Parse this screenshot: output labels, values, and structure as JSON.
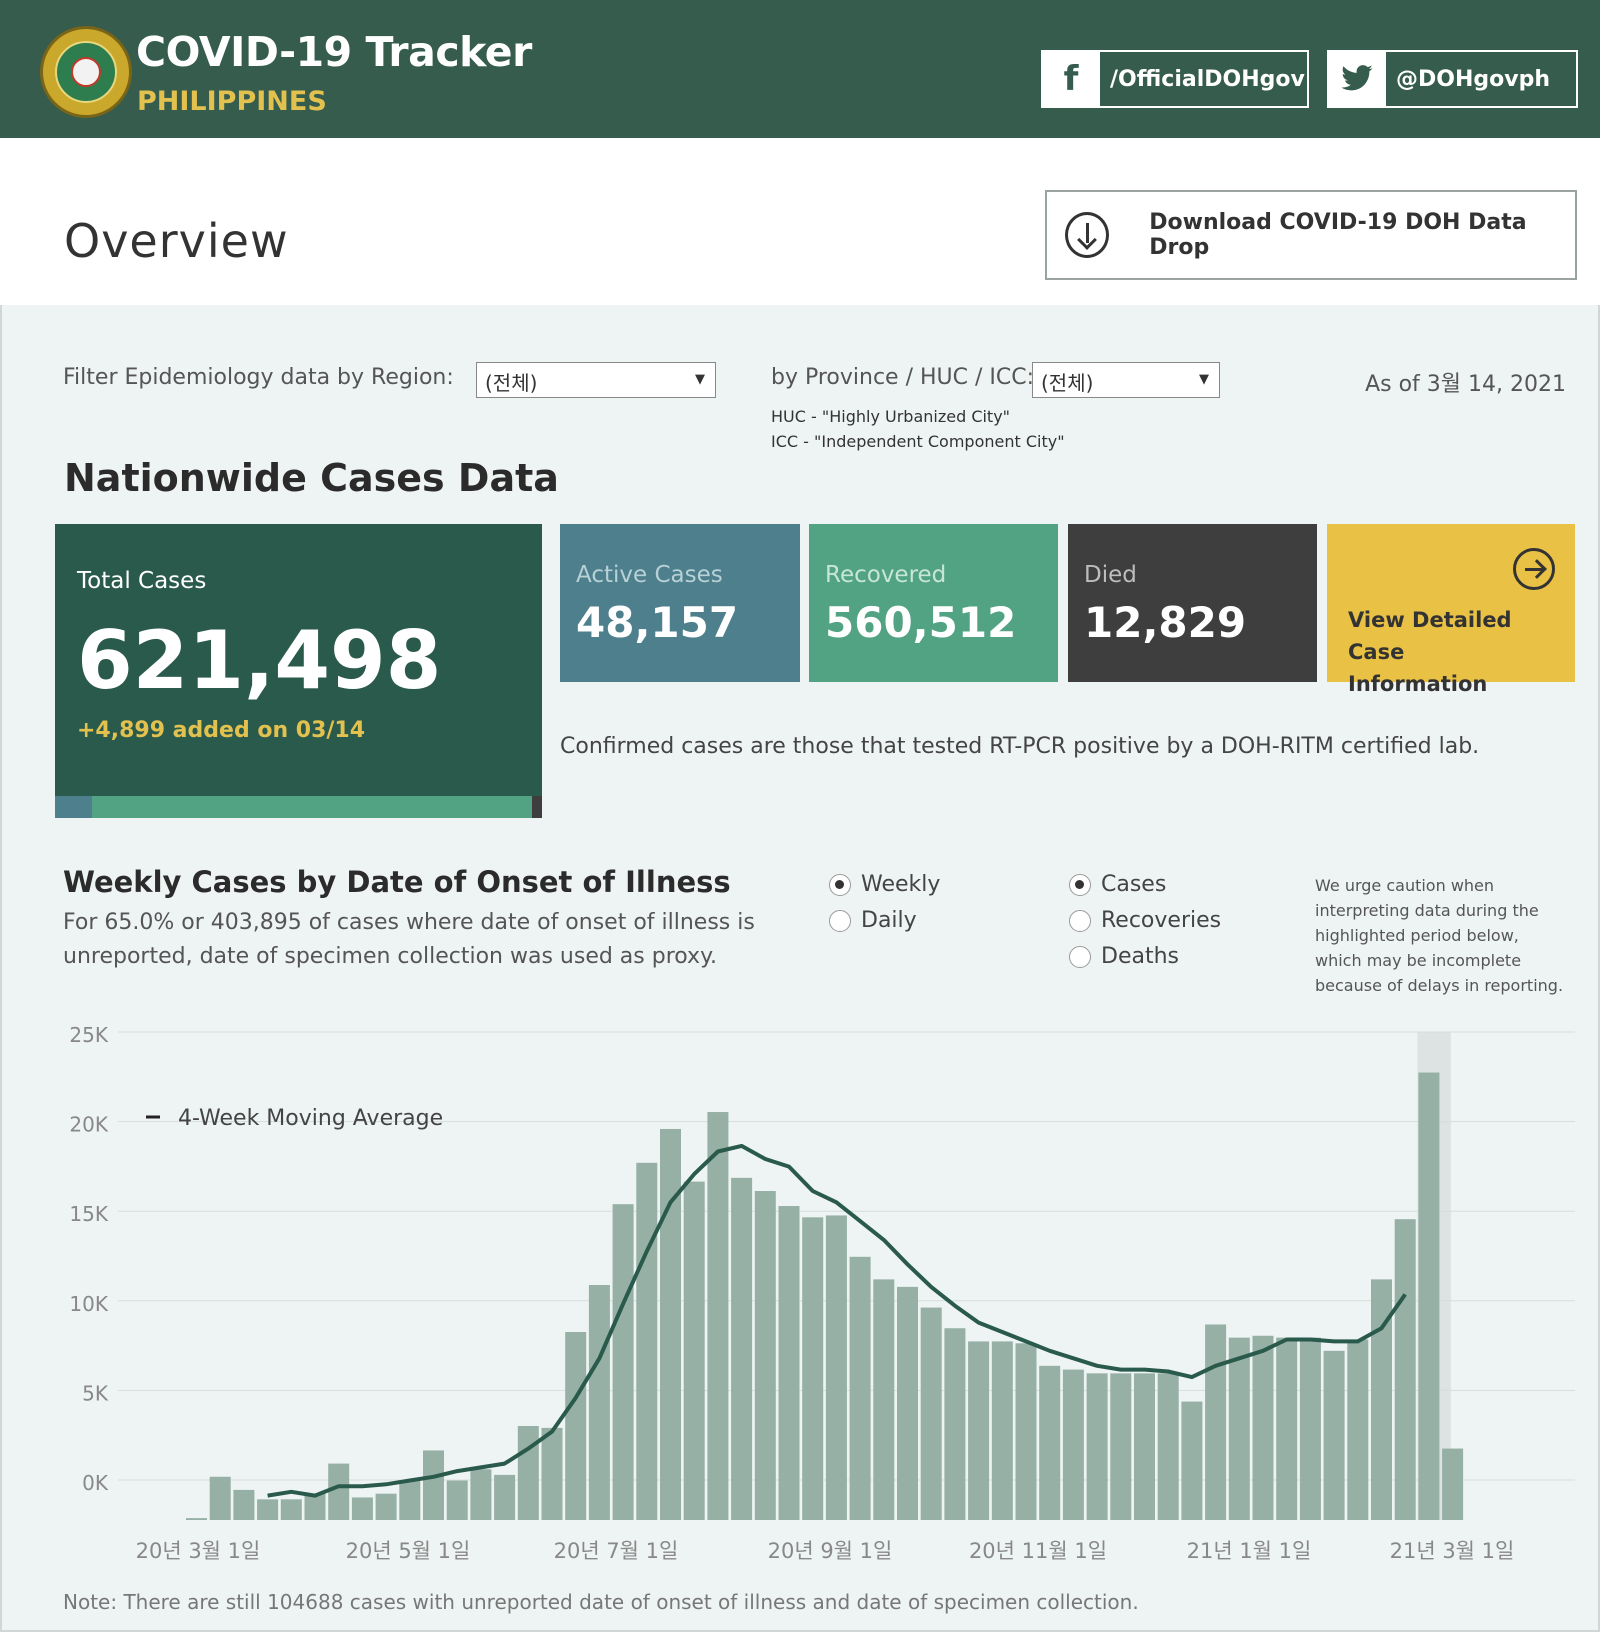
{
  "header": {
    "title": "COVID-19 Tracker",
    "subtitle": "PHILIPPINES",
    "facebook": {
      "icon": "facebook-icon",
      "glyph": "f",
      "handle": "/OfficialDOHgov"
    },
    "twitter": {
      "icon": "twitter-icon",
      "glyph": "🐦",
      "handle": "@DOHgovph"
    }
  },
  "overview": {
    "title": "Overview",
    "download_label": "Download COVID-19 DOH Data Drop"
  },
  "filters": {
    "region_label": "Filter Epidemiology data by Region:",
    "region_value": "(전체)",
    "province_label": "by Province / HUC / ICC:",
    "province_value": "(전체)",
    "huc_note": "HUC - \"Highly Urbanized City\"",
    "icc_note": "ICC - \"Independent Component City\"",
    "as_of": "As of 3월 14, 2021"
  },
  "nationwide": {
    "title": "Nationwide Cases Data",
    "total_label": "Total Cases",
    "total_value": "621,498",
    "total_added": "+4,899 added on 03/14",
    "active_label": "Active Cases",
    "active_value": "48,157",
    "recovered_label": "Recovered",
    "recovered_value": "560,512",
    "died_label": "Died",
    "died_value": "12,829",
    "detail_label": "View Detailed Case Information",
    "confirmed_note": "Confirmed cases are those that tested RT-PCR positive by a DOH-RITM certified lab."
  },
  "weekly": {
    "title": "Weekly Cases by Date of Onset of Illness",
    "description": "For 65.0% or 403,895 of cases where date of onset of illness is unreported, date of specimen collection was used as proxy.",
    "period_options": [
      {
        "label": "Weekly",
        "selected": true
      },
      {
        "label": "Daily",
        "selected": false
      }
    ],
    "metric_options": [
      {
        "label": "Cases",
        "selected": true
      },
      {
        "label": "Recoveries",
        "selected": false
      },
      {
        "label": "Deaths",
        "selected": false
      }
    ],
    "caution": "We urge caution when interpreting data during the highlighted period below, which may be incomplete because of delays in reporting."
  },
  "colors": {
    "header": "#355c4c",
    "bar": "#96b0a6",
    "line": "#2a5a4b",
    "highlight": "#dde3e2"
  },
  "chart_data": {
    "type": "bar",
    "legend": "4-Week Moving Average",
    "y_ticks": [
      "25K",
      "20K",
      "15K",
      "10K",
      "5K",
      "0K"
    ],
    "ylim": [
      0,
      25000
    ],
    "x_tick_labels": [
      "20년 3월 1일",
      "20년 5월 1일",
      "20년 7월 1일",
      "20년 9월 1일",
      "20년 11월 1일",
      "21년 1월 1일",
      "21년 3월 1일"
    ],
    "values": [
      100,
      2300,
      1600,
      1100,
      1100,
      1400,
      3000,
      1200,
      1400,
      2100,
      3700,
      2100,
      2700,
      2400,
      5000,
      4900,
      10000,
      12500,
      16800,
      19000,
      20800,
      18000,
      21700,
      18200,
      17500,
      16700,
      16100,
      16200,
      14000,
      12800,
      12400,
      11300,
      10200,
      9500,
      9500,
      9400,
      8200,
      8000,
      7800,
      7800,
      7800,
      7800,
      6300,
      10400,
      9700,
      9800,
      9700,
      9700,
      9000,
      9600,
      12800,
      16000,
      23800,
      3800
    ],
    "moving_average": [
      null,
      null,
      null,
      1300,
      1500,
      1300,
      1800,
      1800,
      1900,
      2100,
      2300,
      2600,
      2800,
      3000,
      3800,
      4700,
      6500,
      8600,
      11500,
      14300,
      16900,
      18400,
      19600,
      19900,
      19200,
      18800,
      17500,
      16900,
      15900,
      14900,
      13600,
      12400,
      11400,
      10500,
      10000,
      9500,
      9000,
      8600,
      8200,
      8000,
      8000,
      7900,
      7600,
      8200,
      8600,
      9000,
      9600,
      9600,
      9500,
      9500,
      10200,
      12000,
      null,
      null
    ],
    "highlight_last_weeks": 2
  },
  "footer_note": "Note: There are still 104688 cases with unreported date of onset of illness and date of specimen collection."
}
